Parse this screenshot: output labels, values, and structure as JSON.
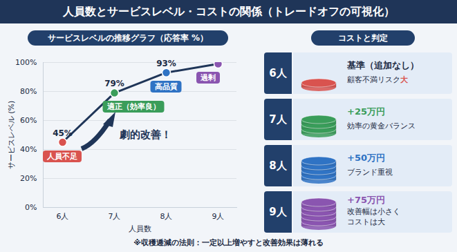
{
  "title": "人員数とサービスレベル・コストの関係（トレードオフの可視化）",
  "chart_data": {
    "type": "line",
    "title": "サービスレベルの推移グラフ（応答率 %）",
    "x_label": "人員数",
    "y_label": "サービスレベル (%)",
    "categories": [
      "6人",
      "7人",
      "8人",
      "9人"
    ],
    "values": [
      45,
      79,
      93,
      99
    ],
    "value_labels": [
      "45%",
      "79%",
      "93%",
      null
    ],
    "data_labels": true,
    "color": "#1f3558",
    "colors": [
      "#d9534f",
      "#3a9d5a",
      "#2f73c4",
      "#8a55b0"
    ],
    "marker": "circle",
    "point_labels": [
      "人員不足",
      "適正（効率良）",
      "高品質",
      "過剰"
    ],
    "annotations": [
      "劇的改善！"
    ],
    "ylim": [
      0,
      100
    ],
    "yticks": [
      {
        "value": 0,
        "label": "0%"
      },
      {
        "value": 20,
        "label": "20%"
      },
      {
        "value": 40,
        "label": "40%"
      },
      {
        "value": 60,
        "label": "60%"
      },
      {
        "value": 80,
        "label": "80%"
      },
      {
        "value": 100,
        "label": "100%"
      }
    ],
    "grid": true
  },
  "cost_panel": {
    "title": "コストと判定",
    "rows": [
      {
        "label": "6人",
        "cost": "基準（追加なし）",
        "note": "顧客不満リスク",
        "note_emphasis": "大",
        "color": "#d9534f"
      },
      {
        "label": "7人",
        "cost": "+25万円",
        "note": "効率の黄金バランス",
        "color": "#3a9d5a"
      },
      {
        "label": "8人",
        "cost": "+50万円",
        "note": "ブランド重視",
        "color": "#2f73c4"
      },
      {
        "label": "9人",
        "cost": "+75万円",
        "note": "改善幅は小さく\nコストは大",
        "color": "#8a55b0"
      }
    ]
  },
  "footnote": "※収穫逓減の法則：一定以上増やすと改善効果は薄れる"
}
